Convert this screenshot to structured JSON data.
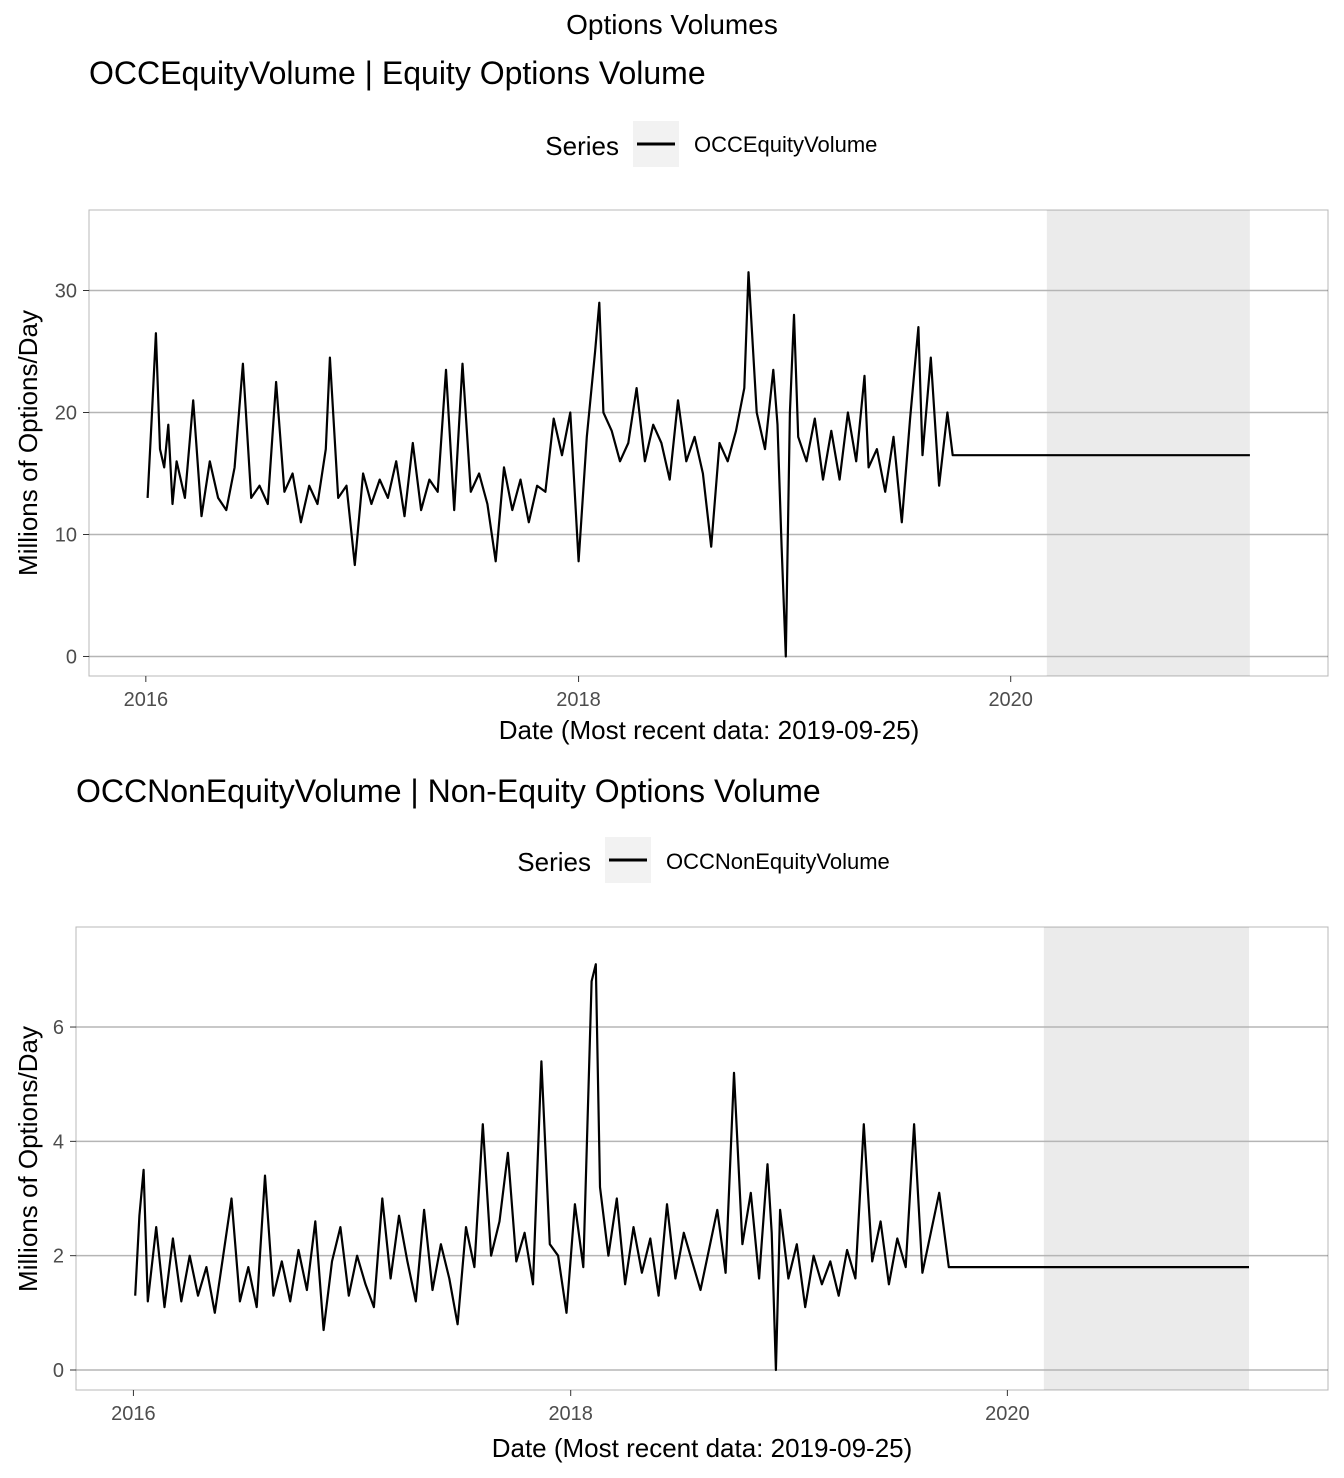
{
  "figure_title": "Options Volumes",
  "chart_data": [
    {
      "type": "line",
      "title": "OCCEquityVolume | Equity Options Volume",
      "xlabel": "Date (Most recent data: 2019-09-25)",
      "ylabel": "Millions of Options/Day",
      "legend": {
        "title": "Series",
        "placement": "top"
      },
      "x_ticks": [
        "2016",
        "2018",
        "2020"
      ],
      "y_ticks": [
        0,
        10,
        20,
        30
      ],
      "xlim": [
        "2015-09-27",
        "2021-06-20"
      ],
      "ylim": [
        -1.6,
        36.6
      ],
      "grid": true,
      "line_color": "#000000",
      "shaded_region": {
        "start": "2020-03-02",
        "end": "2021-02-08",
        "color": "#ebebeb"
      },
      "series": [
        {
          "name": "OCCEquityVolume",
          "x": [
            "2016-01-04",
            "2016-01-11",
            "2016-01-18",
            "2016-01-25",
            "2016-02-01",
            "2016-02-08",
            "2016-02-15",
            "2016-02-22",
            "2016-03-07",
            "2016-03-21",
            "2016-04-04",
            "2016-04-18",
            "2016-05-02",
            "2016-05-16",
            "2016-05-30",
            "2016-06-13",
            "2016-06-27",
            "2016-07-11",
            "2016-07-25",
            "2016-08-08",
            "2016-08-22",
            "2016-09-05",
            "2016-09-19",
            "2016-10-03",
            "2016-10-17",
            "2016-10-31",
            "2016-11-07",
            "2016-11-21",
            "2016-12-05",
            "2016-12-19",
            "2017-01-02",
            "2017-01-16",
            "2017-01-30",
            "2017-02-13",
            "2017-02-27",
            "2017-03-13",
            "2017-03-27",
            "2017-04-10",
            "2017-04-24",
            "2017-05-08",
            "2017-05-22",
            "2017-06-05",
            "2017-06-19",
            "2017-07-03",
            "2017-07-17",
            "2017-07-31",
            "2017-08-14",
            "2017-08-28",
            "2017-09-11",
            "2017-09-25",
            "2017-10-09",
            "2017-10-23",
            "2017-11-06",
            "2017-11-20",
            "2017-12-04",
            "2017-12-18",
            "2018-01-01",
            "2018-01-15",
            "2018-01-29",
            "2018-02-05",
            "2018-02-12",
            "2018-02-26",
            "2018-03-12",
            "2018-03-26",
            "2018-04-09",
            "2018-04-23",
            "2018-05-07",
            "2018-05-21",
            "2018-06-04",
            "2018-06-18",
            "2018-07-02",
            "2018-07-16",
            "2018-07-30",
            "2018-08-13",
            "2018-08-27",
            "2018-09-10",
            "2018-09-24",
            "2018-10-08",
            "2018-10-15",
            "2018-10-29",
            "2018-11-12",
            "2018-11-26",
            "2018-12-03",
            "2018-12-10",
            "2018-12-17",
            "2018-12-24",
            "2018-12-31",
            "2019-01-07",
            "2019-01-21",
            "2019-02-04",
            "2019-02-18",
            "2019-03-04",
            "2019-03-18",
            "2019-04-01",
            "2019-04-15",
            "2019-04-29",
            "2019-05-06",
            "2019-05-20",
            "2019-06-03",
            "2019-06-17",
            "2019-07-01",
            "2019-07-15",
            "2019-07-29",
            "2019-08-05",
            "2019-08-19",
            "2019-09-02",
            "2019-09-16",
            "2019-09-25",
            "2021-02-08"
          ],
          "values": [
            13.0,
            19.5,
            26.5,
            17.0,
            15.5,
            19.0,
            12.5,
            16.0,
            13.0,
            21.0,
            11.5,
            16.0,
            13.0,
            12.0,
            15.5,
            24.0,
            13.0,
            14.0,
            12.5,
            22.5,
            13.5,
            15.0,
            11.0,
            14.0,
            12.5,
            17.0,
            24.5,
            13.0,
            14.0,
            7.5,
            15.0,
            12.5,
            14.5,
            13.0,
            16.0,
            11.5,
            17.5,
            12.0,
            14.5,
            13.5,
            23.5,
            12.0,
            24.0,
            13.5,
            15.0,
            12.5,
            7.8,
            15.5,
            12.0,
            14.5,
            11.0,
            14.0,
            13.5,
            19.5,
            16.5,
            20.0,
            7.8,
            18.0,
            25.0,
            29.0,
            20.0,
            18.5,
            16.0,
            17.5,
            22.0,
            16.0,
            19.0,
            17.5,
            14.5,
            21.0,
            16.0,
            18.0,
            15.0,
            9.0,
            17.5,
            16.0,
            18.5,
            22.0,
            31.5,
            20.0,
            17.0,
            23.5,
            19.0,
            9.0,
            0.0,
            20.0,
            28.0,
            18.0,
            16.0,
            19.5,
            14.5,
            18.5,
            14.5,
            20.0,
            16.0,
            23.0,
            15.5,
            17.0,
            13.5,
            18.0,
            11.0,
            19.5,
            27.0,
            16.5,
            24.5,
            14.0,
            20.0,
            16.5,
            16.5
          ]
        }
      ]
    },
    {
      "type": "line",
      "title": "OCCNonEquityVolume | Non-Equity Options Volume",
      "xlabel": "Date (Most recent data: 2019-09-25)",
      "ylabel": "Millions of Options/Day",
      "legend": {
        "title": "Series",
        "placement": "top"
      },
      "x_ticks": [
        "2016",
        "2018",
        "2020"
      ],
      "y_ticks": [
        0,
        2,
        4,
        6
      ],
      "xlim": [
        "2015-09-27",
        "2021-06-20"
      ],
      "ylim": [
        -0.35,
        7.75
      ],
      "grid": true,
      "line_color": "#000000",
      "shaded_region": {
        "start": "2020-03-02",
        "end": "2021-02-08",
        "color": "#ebebeb"
      },
      "series": [
        {
          "name": "OCCNonEquityVolume",
          "x": [
            "2016-01-04",
            "2016-01-11",
            "2016-01-18",
            "2016-01-25",
            "2016-02-08",
            "2016-02-22",
            "2016-03-07",
            "2016-03-21",
            "2016-04-04",
            "2016-04-18",
            "2016-05-02",
            "2016-05-16",
            "2016-05-30",
            "2016-06-13",
            "2016-06-27",
            "2016-07-11",
            "2016-07-25",
            "2016-08-08",
            "2016-08-22",
            "2016-09-05",
            "2016-09-19",
            "2016-10-03",
            "2016-10-17",
            "2016-10-31",
            "2016-11-14",
            "2016-11-28",
            "2016-12-12",
            "2016-12-26",
            "2017-01-09",
            "2017-01-23",
            "2017-02-06",
            "2017-02-20",
            "2017-03-06",
            "2017-03-20",
            "2017-04-03",
            "2017-04-17",
            "2017-05-01",
            "2017-05-15",
            "2017-05-29",
            "2017-06-12",
            "2017-06-26",
            "2017-07-10",
            "2017-07-24",
            "2017-08-07",
            "2017-08-21",
            "2017-09-04",
            "2017-09-18",
            "2017-10-02",
            "2017-10-16",
            "2017-10-30",
            "2017-11-13",
            "2017-11-27",
            "2017-12-11",
            "2017-12-25",
            "2018-01-08",
            "2018-01-22",
            "2018-02-05",
            "2018-02-12",
            "2018-02-19",
            "2018-03-05",
            "2018-03-19",
            "2018-04-02",
            "2018-04-16",
            "2018-04-30",
            "2018-05-14",
            "2018-05-28",
            "2018-06-11",
            "2018-06-25",
            "2018-07-09",
            "2018-07-23",
            "2018-08-06",
            "2018-08-20",
            "2018-09-03",
            "2018-09-17",
            "2018-10-01",
            "2018-10-15",
            "2018-10-29",
            "2018-11-12",
            "2018-11-26",
            "2018-12-03",
            "2018-12-10",
            "2018-12-17",
            "2018-12-31",
            "2019-01-14",
            "2019-01-28",
            "2019-02-11",
            "2019-02-25",
            "2019-03-11",
            "2019-03-25",
            "2019-04-08",
            "2019-04-22",
            "2019-05-06",
            "2019-05-20",
            "2019-06-03",
            "2019-06-17",
            "2019-07-01",
            "2019-07-15",
            "2019-07-29",
            "2019-08-12",
            "2019-08-26",
            "2019-09-09",
            "2019-09-25",
            "2021-02-08"
          ],
          "values": [
            1.3,
            2.7,
            3.5,
            1.2,
            2.5,
            1.1,
            2.3,
            1.2,
            2.0,
            1.3,
            1.8,
            1.0,
            2.0,
            3.0,
            1.2,
            1.8,
            1.1,
            3.4,
            1.3,
            1.9,
            1.2,
            2.1,
            1.4,
            2.6,
            0.7,
            1.9,
            2.5,
            1.3,
            2.0,
            1.5,
            1.1,
            3.0,
            1.6,
            2.7,
            1.9,
            1.2,
            2.8,
            1.4,
            2.2,
            1.6,
            0.8,
            2.5,
            1.8,
            4.3,
            2.0,
            2.6,
            3.8,
            1.9,
            2.4,
            1.5,
            5.4,
            2.2,
            2.0,
            1.0,
            2.9,
            1.8,
            6.8,
            7.1,
            3.2,
            2.0,
            3.0,
            1.5,
            2.5,
            1.7,
            2.3,
            1.3,
            2.9,
            1.6,
            2.4,
            1.9,
            1.4,
            2.1,
            2.8,
            1.7,
            5.2,
            2.2,
            3.1,
            1.6,
            3.6,
            2.4,
            0.0,
            2.8,
            1.6,
            2.2,
            1.1,
            2.0,
            1.5,
            1.9,
            1.3,
            2.1,
            1.6,
            4.3,
            1.9,
            2.6,
            1.5,
            2.3,
            1.8,
            4.3,
            1.7,
            2.4,
            3.1,
            1.8,
            1.8
          ]
        }
      ]
    }
  ]
}
